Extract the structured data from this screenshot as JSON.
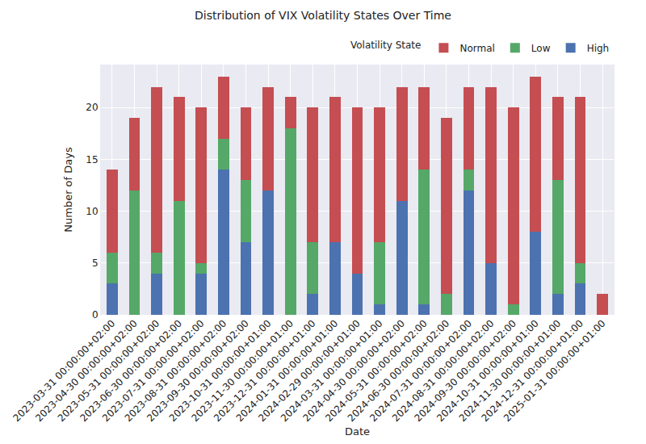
{
  "chart_data": {
    "type": "bar",
    "stacked": true,
    "title": "Distribution of VIX Volatility States Over Time",
    "x_label": "Date",
    "y_label": "Number of Days",
    "legend_title": "Volatility State",
    "legend": "upper right",
    "grid": true,
    "categories": [
      "2023-03-31 00:00:00+02:00",
      "2023-04-30 00:00:00+02:00",
      "2023-05-31 00:00:00+02:00",
      "2023-06-30 00:00:00+02:00",
      "2023-07-31 00:00:00+02:00",
      "2023-08-31 00:00:00+02:00",
      "2023-09-30 00:00:00+02:00",
      "2023-10-31 00:00:00+01:00",
      "2023-11-30 00:00:00+01:00",
      "2023-12-31 00:00:00+01:00",
      "2024-01-31 00:00:00+01:00",
      "2024-02-29 00:00:00+01:00",
      "2024-03-31 00:00:00+01:00",
      "2024-04-30 00:00:00+02:00",
      "2024-05-31 00:00:00+02:00",
      "2024-06-30 00:00:00+02:00",
      "2024-07-31 00:00:00+02:00",
      "2024-08-31 00:00:00+02:00",
      "2024-09-30 00:00:00+02:00",
      "2024-10-31 00:00:00+01:00",
      "2024-11-30 00:00:00+01:00",
      "2024-12-31 00:00:00+01:00",
      "2025-01-31 00:00:00+01:00"
    ],
    "series": [
      {
        "name": "High",
        "color": "#4c72b0",
        "values": [
          3,
          0,
          4,
          0,
          4,
          14,
          7,
          12,
          0,
          2,
          7,
          4,
          1,
          11,
          1,
          0,
          12,
          5,
          0,
          8,
          2,
          3,
          0
        ]
      },
      {
        "name": "Low",
        "color": "#55a868",
        "values": [
          3,
          12,
          2,
          11,
          1,
          3,
          6,
          0,
          18,
          5,
          0,
          0,
          6,
          0,
          13,
          2,
          2,
          0,
          1,
          0,
          11,
          2,
          0
        ]
      },
      {
        "name": "Normal",
        "color": "#c44e52",
        "values": [
          8,
          7,
          16,
          10,
          15,
          6,
          7,
          10,
          3,
          13,
          14,
          16,
          13,
          11,
          8,
          17,
          8,
          17,
          19,
          15,
          8,
          16,
          2
        ]
      }
    ],
    "ylim": [
      0,
      24.15
    ],
    "yticks": [
      0,
      5,
      10,
      15,
      20
    ]
  }
}
